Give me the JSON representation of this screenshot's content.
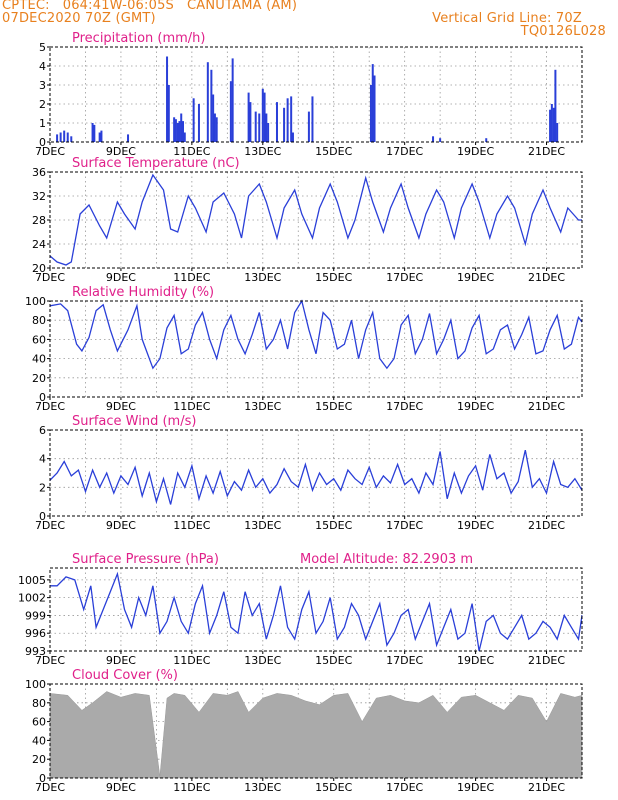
{
  "header": {
    "station_line": "CPTEC:   064:41W-06:05S   CANUTAMA (AM)",
    "run_line": "07DEC2020 70Z (GMT)",
    "grid_note": "Vertical Grid Line: 70Z",
    "code": "TQ0126L028"
  },
  "colors": {
    "header_text": "#e8801e",
    "panel_title": "#e0208a",
    "series": "#2a3fd8",
    "cloud": "#aaaaaa",
    "grid": "#999999"
  },
  "chart_data": [
    {
      "type": "bar",
      "title": "Precipitation (mm/h)",
      "xlabel": "",
      "ylabel": "",
      "x_ticks": [
        "7DEC",
        "9DEC",
        "11DEC",
        "13DEC",
        "15DEC",
        "17DEC",
        "19DEC",
        "21DEC"
      ],
      "ylim": [
        0,
        5
      ],
      "y_ticks": [
        0,
        1,
        2,
        3,
        4,
        5
      ],
      "grid": true,
      "x_unit": "day offset from 07DEC 00Z",
      "x": [
        0.2,
        0.3,
        0.4,
        0.5,
        0.6,
        1.2,
        1.25,
        1.4,
        1.45,
        2.2,
        3.3,
        3.35,
        3.5,
        3.55,
        3.6,
        3.65,
        3.7,
        3.75,
        3.8,
        4.05,
        4.2,
        4.45,
        4.55,
        4.6,
        4.65,
        4.7,
        5.1,
        5.15,
        5.6,
        5.65,
        5.8,
        5.9,
        6.0,
        6.05,
        6.1,
        6.15,
        6.4,
        6.6,
        6.7,
        6.8,
        6.85,
        7.3,
        7.4,
        9.05,
        9.1,
        9.15,
        10.8,
        11.0,
        12.3,
        14.1,
        14.15,
        14.2,
        14.25,
        14.3
      ],
      "values": [
        0.4,
        0.5,
        0.6,
        0.5,
        0.3,
        1.0,
        0.9,
        0.5,
        0.6,
        0.4,
        4.5,
        3.0,
        1.3,
        1.2,
        1.0,
        1.1,
        1.5,
        1.1,
        0.5,
        2.3,
        2.0,
        4.2,
        3.8,
        2.5,
        1.5,
        1.3,
        3.2,
        4.4,
        2.6,
        2.1,
        1.6,
        1.5,
        2.8,
        2.6,
        1.5,
        1.0,
        2.1,
        1.8,
        2.3,
        2.4,
        0.5,
        1.6,
        2.4,
        3.0,
        4.1,
        3.5,
        0.3,
        0.2,
        0.2,
        1.7,
        2.0,
        1.8,
        3.8,
        1.0
      ]
    },
    {
      "type": "line",
      "title": "Surface Temperature (nC)",
      "xlabel": "",
      "ylabel": "",
      "x_ticks": [
        "7DEC",
        "9DEC",
        "11DEC",
        "13DEC",
        "15DEC",
        "17DEC",
        "19DEC",
        "21DEC"
      ],
      "ylim": [
        20,
        36
      ],
      "y_ticks": [
        20,
        24,
        28,
        32,
        36
      ],
      "grid": true,
      "x_unit": "day offset from 07DEC 00Z",
      "x": [
        0,
        0.2,
        0.45,
        0.6,
        0.85,
        1.1,
        1.4,
        1.6,
        1.9,
        2.1,
        2.4,
        2.6,
        2.9,
        3.2,
        3.4,
        3.6,
        3.9,
        4.1,
        4.4,
        4.6,
        4.9,
        5.2,
        5.4,
        5.6,
        5.9,
        6.1,
        6.4,
        6.6,
        6.9,
        7.1,
        7.4,
        7.6,
        7.9,
        8.1,
        8.4,
        8.6,
        8.9,
        9.1,
        9.4,
        9.6,
        9.9,
        10.1,
        10.4,
        10.6,
        10.9,
        11.1,
        11.4,
        11.6,
        11.9,
        12.1,
        12.4,
        12.6,
        12.9,
        13.1,
        13.4,
        13.6,
        13.9,
        14.1,
        14.4,
        14.6,
        14.9,
        15.0
      ],
      "values": [
        22,
        21,
        20.5,
        21,
        29,
        30.5,
        27,
        25,
        31,
        29,
        26.5,
        31,
        35.5,
        33,
        26.5,
        26,
        32,
        30,
        26,
        31,
        32.5,
        29,
        25,
        32,
        34,
        31,
        25,
        30,
        33,
        29,
        25,
        30,
        34,
        31,
        25,
        28,
        35,
        31,
        26,
        30,
        34,
        30,
        25,
        29,
        33,
        31,
        25,
        30,
        34,
        31,
        25,
        29,
        32,
        30,
        24,
        29,
        33,
        30,
        26,
        30,
        28,
        28
      ]
    },
    {
      "type": "line",
      "title": "Relative Humidity (%)",
      "xlabel": "",
      "ylabel": "",
      "x_ticks": [
        "7DEC",
        "9DEC",
        "11DEC",
        "13DEC",
        "15DEC",
        "17DEC",
        "19DEC",
        "21DEC"
      ],
      "ylim": [
        0,
        100
      ],
      "y_ticks": [
        0,
        20,
        40,
        60,
        80,
        100
      ],
      "grid": true,
      "x_unit": "day offset from 07DEC 00Z",
      "x": [
        0,
        0.3,
        0.5,
        0.75,
        0.9,
        1.1,
        1.3,
        1.5,
        1.7,
        1.9,
        2.2,
        2.45,
        2.6,
        2.9,
        3.1,
        3.3,
        3.5,
        3.7,
        3.9,
        4.1,
        4.3,
        4.5,
        4.7,
        4.9,
        5.1,
        5.3,
        5.5,
        5.7,
        5.9,
        6.1,
        6.3,
        6.5,
        6.7,
        6.9,
        7.1,
        7.3,
        7.5,
        7.7,
        7.9,
        8.1,
        8.3,
        8.5,
        8.7,
        8.9,
        9.1,
        9.3,
        9.5,
        9.7,
        9.9,
        10.1,
        10.3,
        10.5,
        10.7,
        10.9,
        11.1,
        11.3,
        11.5,
        11.7,
        11.9,
        12.1,
        12.3,
        12.5,
        12.7,
        12.9,
        13.1,
        13.3,
        13.5,
        13.7,
        13.9,
        14.1,
        14.3,
        14.5,
        14.7,
        14.9,
        15.0
      ],
      "values": [
        95,
        97,
        90,
        55,
        48,
        62,
        90,
        96,
        70,
        48,
        70,
        95,
        60,
        30,
        40,
        72,
        85,
        45,
        50,
        75,
        88,
        60,
        40,
        70,
        85,
        60,
        45,
        65,
        88,
        50,
        60,
        80,
        50,
        88,
        100,
        70,
        45,
        88,
        80,
        50,
        55,
        80,
        40,
        70,
        88,
        40,
        30,
        40,
        75,
        85,
        45,
        60,
        87,
        45,
        60,
        80,
        40,
        48,
        72,
        85,
        45,
        50,
        70,
        75,
        50,
        65,
        83,
        45,
        48,
        70,
        85,
        50,
        55,
        83,
        78
      ]
    },
    {
      "type": "line",
      "title": "Surface Wind (m/s)",
      "xlabel": "",
      "ylabel": "",
      "x_ticks": [
        "7DEC",
        "9DEC",
        "11DEC",
        "13DEC",
        "15DEC",
        "17DEC",
        "19DEC",
        "21DEC"
      ],
      "ylim": [
        0,
        6
      ],
      "y_ticks": [
        0,
        2,
        4,
        6
      ],
      "grid": true,
      "x_unit": "day offset from 07DEC 00Z",
      "x": [
        0,
        0.2,
        0.4,
        0.6,
        0.8,
        1.0,
        1.2,
        1.4,
        1.6,
        1.8,
        2.0,
        2.2,
        2.4,
        2.6,
        2.8,
        3.0,
        3.2,
        3.4,
        3.6,
        3.8,
        4.0,
        4.2,
        4.4,
        4.6,
        4.8,
        5.0,
        5.2,
        5.4,
        5.6,
        5.8,
        6.0,
        6.2,
        6.4,
        6.6,
        6.8,
        7.0,
        7.2,
        7.4,
        7.6,
        7.8,
        8.0,
        8.2,
        8.4,
        8.6,
        8.8,
        9.0,
        9.2,
        9.4,
        9.6,
        9.8,
        10.0,
        10.2,
        10.4,
        10.6,
        10.8,
        11.0,
        11.2,
        11.4,
        11.6,
        11.8,
        12.0,
        12.2,
        12.4,
        12.6,
        12.8,
        13.0,
        13.2,
        13.4,
        13.6,
        13.8,
        14.0,
        14.2,
        14.4,
        14.6,
        14.8,
        15.0
      ],
      "values": [
        2.5,
        3.0,
        3.8,
        2.8,
        3.2,
        1.7,
        3.2,
        2.0,
        3.0,
        1.6,
        2.8,
        2.2,
        3.4,
        1.4,
        3.0,
        1.0,
        2.6,
        0.8,
        3.0,
        2.0,
        3.5,
        1.2,
        2.8,
        1.6,
        3.1,
        1.4,
        2.4,
        1.8,
        3.2,
        2.0,
        2.6,
        1.6,
        2.2,
        3.3,
        2.4,
        2.0,
        3.6,
        1.8,
        3.0,
        2.2,
        2.6,
        1.8,
        3.2,
        2.6,
        2.2,
        3.4,
        2.0,
        2.8,
        2.3,
        3.6,
        2.2,
        2.6,
        1.6,
        3.0,
        2.2,
        4.5,
        1.2,
        3.0,
        1.6,
        2.8,
        3.5,
        1.8,
        4.3,
        2.6,
        3.0,
        1.6,
        2.4,
        4.6,
        2.0,
        2.6,
        1.6,
        3.8,
        2.2,
        2.0,
        2.6,
        1.8
      ]
    },
    {
      "type": "line",
      "title": "Surface Pressure (hPa)",
      "annotation": "Model Altitude: 82.2903 m",
      "xlabel": "",
      "ylabel": "",
      "x_ticks": [
        "7DEC",
        "9DEC",
        "11DEC",
        "13DEC",
        "15DEC",
        "17DEC",
        "19DEC",
        "21DEC"
      ],
      "ylim": [
        993,
        1007
      ],
      "y_ticks": [
        993,
        996,
        999,
        1002,
        1005
      ],
      "grid": true,
      "x_unit": "day offset from 07DEC 00Z",
      "x": [
        0,
        0.2,
        0.45,
        0.7,
        0.95,
        1.15,
        1.3,
        1.5,
        1.7,
        1.9,
        2.1,
        2.3,
        2.5,
        2.7,
        2.9,
        3.1,
        3.3,
        3.5,
        3.7,
        3.9,
        4.1,
        4.3,
        4.5,
        4.7,
        4.9,
        5.1,
        5.3,
        5.5,
        5.7,
        5.9,
        6.1,
        6.3,
        6.5,
        6.7,
        6.9,
        7.1,
        7.3,
        7.5,
        7.7,
        7.9,
        8.1,
        8.3,
        8.5,
        8.7,
        8.9,
        9.1,
        9.3,
        9.5,
        9.7,
        9.9,
        10.1,
        10.3,
        10.5,
        10.7,
        10.9,
        11.1,
        11.3,
        11.5,
        11.7,
        11.9,
        12.1,
        12.3,
        12.5,
        12.7,
        12.9,
        13.1,
        13.3,
        13.5,
        13.7,
        13.9,
        14.1,
        14.3,
        14.5,
        14.7,
        14.9,
        15.0
      ],
      "values": [
        1004,
        1004,
        1005.5,
        1005,
        1000,
        1004,
        997,
        1000,
        1003,
        1006,
        1000,
        997,
        1002,
        999,
        1004,
        996,
        998,
        1002,
        998,
        996,
        1001,
        1004,
        996,
        999,
        1003,
        997,
        996,
        1003,
        999,
        1001,
        995,
        999,
        1004,
        997,
        995,
        1000,
        1003,
        996,
        998,
        1002,
        995,
        997,
        1001,
        999,
        995,
        998,
        1001,
        994,
        996,
        999,
        1000,
        995,
        998,
        1001,
        994,
        997,
        1000,
        995,
        996,
        1001,
        993,
        998,
        999,
        996,
        995,
        997,
        999,
        995,
        996,
        998,
        997,
        995,
        999,
        997,
        995,
        999
      ]
    },
    {
      "type": "area",
      "title": "Cloud Cover (%)",
      "xlabel": "",
      "ylabel": "",
      "x_ticks": [
        "7DEC",
        "9DEC",
        "11DEC",
        "13DEC",
        "15DEC",
        "17DEC",
        "19DEC",
        "21DEC"
      ],
      "ylim": [
        0,
        100
      ],
      "y_ticks": [
        0,
        20,
        40,
        60,
        80,
        100
      ],
      "grid": true,
      "x_unit": "day offset from 07DEC 00Z",
      "x": [
        0,
        0.5,
        0.9,
        1.2,
        1.6,
        2.0,
        2.4,
        2.8,
        3.1,
        3.3,
        3.5,
        3.8,
        4.2,
        4.6,
        5.0,
        5.3,
        5.6,
        6.0,
        6.4,
        6.8,
        7.2,
        7.6,
        8.0,
        8.4,
        8.8,
        9.2,
        9.6,
        10.0,
        10.4,
        10.8,
        11.2,
        11.6,
        12.0,
        12.4,
        12.8,
        13.2,
        13.6,
        14.0,
        14.4,
        14.8,
        15.0
      ],
      "values": [
        90,
        88,
        72,
        80,
        92,
        86,
        90,
        88,
        2,
        85,
        90,
        88,
        70,
        90,
        88,
        92,
        70,
        85,
        90,
        88,
        82,
        78,
        88,
        90,
        60,
        85,
        88,
        82,
        80,
        88,
        70,
        86,
        88,
        80,
        72,
        88,
        85,
        60,
        90,
        86,
        88
      ]
    }
  ]
}
